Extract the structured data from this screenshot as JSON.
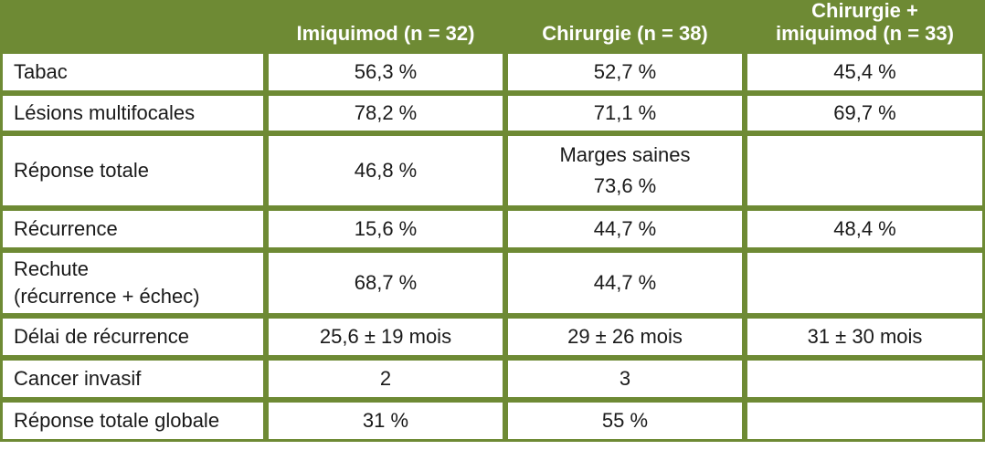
{
  "table": {
    "headers": [
      "",
      "Imiquimod (n = 32)",
      "Chirurgie (n = 38)",
      "Chirurgie + imiquimod (n = 33)"
    ],
    "header_col3_line1": "Chirurgie +",
    "header_col3_line2": "imiquimod (n = 33)",
    "rows": [
      {
        "label": "Tabac",
        "values": [
          "56,3 %",
          "52,7 %",
          "45,4 %"
        ]
      },
      {
        "label": "Lésions multifocales",
        "values": [
          "78,2 %",
          "71,1 %",
          "69,7 %"
        ]
      },
      {
        "label": "Réponse totale",
        "values": [
          "46,8 %",
          "Marges saines",
          ""
        ],
        "value2_line2": "73,6 %"
      },
      {
        "label": "Récurrence",
        "values": [
          "15,6 %",
          "44,7 %",
          "48,4 %"
        ]
      },
      {
        "label": "Rechute",
        "label_line2": "(récurrence + échec)",
        "values": [
          "68,7 %",
          "44,7 %",
          ""
        ]
      },
      {
        "label": "Délai de récurrence",
        "values": [
          "25,6 ± 19 mois",
          "29 ± 26 mois",
          "31 ± 30 mois"
        ]
      },
      {
        "label": "Cancer invasif",
        "values": [
          "2",
          "3",
          ""
        ]
      },
      {
        "label": "Réponse totale globale",
        "values": [
          "31 %",
          "55 %",
          ""
        ]
      }
    ]
  },
  "colors": {
    "header_green": "#6e8a34",
    "text": "#1a1a1a",
    "header_text": "#ffffff"
  }
}
